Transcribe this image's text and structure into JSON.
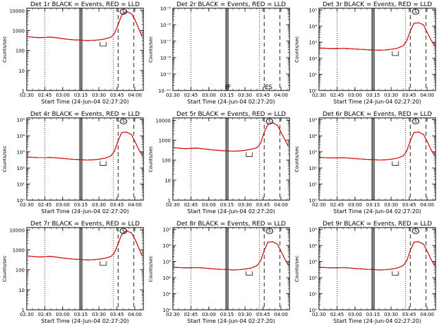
{
  "figure": {
    "time_axis_label": "Start Time (24-Jun-04 02:27:20)",
    "count_axis_label": "Counts/sec",
    "x_tick_labels": [
      "02:30",
      "02:45",
      "03:00",
      "03:15",
      "03:30",
      "03:45",
      "04:00"
    ],
    "colors": {
      "events": "#000000",
      "lld": "#ff0000",
      "background": "#ffffff"
    }
  },
  "chart_data": [
    {
      "type": "line",
      "title": "Det 1r BLACK = Events, RED = LLD",
      "xlabel": "Start Time (24-Jun-04 02:27:20)",
      "ylabel": "Counts/sec",
      "log_y": true,
      "xlim": [
        "02:30",
        "04:07"
      ],
      "ylim": [
        1,
        13000
      ],
      "y_tick_labels": [
        "1",
        "10",
        "100",
        "1000",
        "10000"
      ],
      "x_tick_labels": [
        "02:30",
        "02:45",
        "03:00",
        "03:15",
        "03:30",
        "03:45",
        "04:00"
      ],
      "annotations": [
        "Ⓢ"
      ],
      "markers": {
        "dotted_lines": [
          "02:45",
          "03:42"
        ],
        "solid_lines": [
          "03:14",
          "03:15",
          "03:16"
        ],
        "dashed_lines": [
          "03:46",
          "03:59"
        ]
      },
      "x": [
        "02:30",
        "02:35",
        "02:40",
        "02:45",
        "02:50",
        "02:55",
        "03:00",
        "03:05",
        "03:10",
        "03:15",
        "03:20",
        "03:25",
        "03:30",
        "03:35",
        "03:40",
        "03:43",
        "03:46",
        "03:49",
        "03:53",
        "03:57",
        "04:00",
        "04:03",
        "04:06"
      ],
      "series": [
        {
          "values": [
            500,
            460,
            440,
            450,
            470,
            430,
            390,
            360,
            340,
            330,
            310,
            320,
            340,
            380,
            460,
            700,
            2000,
            6000,
            9000,
            7000,
            3500,
            1300,
            500
          ]
        },
        {
          "values": [
            500,
            460,
            440,
            450,
            470,
            430,
            390,
            360,
            340,
            330,
            310,
            320,
            340,
            380,
            460,
            700,
            2000,
            6000,
            9000,
            7000,
            3500,
            1300,
            500
          ]
        }
      ]
    },
    {
      "type": "line",
      "title": "Det 2r BLACK = Events, RED = LLD",
      "xlabel": "Start Time (24-Jun-04 02:27:20)",
      "ylabel": "Counts/sec",
      "log_y": true,
      "xlim": [
        "02:30",
        "04:07"
      ],
      "ylim": [
        1e-10,
        1e-05
      ],
      "y_tick_labels": [
        "10⁻¹⁰",
        "10⁻⁹",
        "10⁻⁸",
        "10⁻⁷",
        "10⁻⁶",
        "10⁻⁵"
      ],
      "x_tick_labels": [
        "02:30",
        "02:45",
        "03:00",
        "03:15",
        "03:30",
        "03:45",
        "04:00"
      ],
      "annotations": [
        "F",
        "F",
        "E",
        "S"
      ],
      "markers": {
        "dotted_lines": [
          "02:45",
          "03:42"
        ],
        "solid_lines": [
          "03:14",
          "03:15",
          "03:16"
        ],
        "dashed_lines": [
          "03:46",
          "03:59"
        ]
      },
      "x": [],
      "series": []
    },
    {
      "type": "line",
      "title": "Det 3r BLACK = Events, RED = LLD",
      "xlabel": "Start Time (24-Jun-04 02:27:20)",
      "ylabel": "Counts/sec",
      "log_y": true,
      "xlim": [
        "02:30",
        "04:07"
      ],
      "ylim": [
        1,
        130000
      ],
      "y_tick_labels": [
        "10⁰",
        "10¹",
        "10²",
        "10³",
        "10⁴",
        "10⁵"
      ],
      "x_tick_labels": [
        "02:30",
        "02:45",
        "03:00",
        "03:15",
        "03:30",
        "03:45",
        "04:00"
      ],
      "annotations": [
        "Ⓢ"
      ],
      "markers": {
        "dotted_lines": [
          "02:45",
          "03:42"
        ],
        "solid_lines": [
          "03:14",
          "03:15",
          "03:16"
        ],
        "dashed_lines": [
          "03:46",
          "03:59"
        ]
      },
      "x": [
        "02:30",
        "02:35",
        "02:40",
        "02:45",
        "02:50",
        "02:55",
        "03:00",
        "03:05",
        "03:10",
        "03:15",
        "03:20",
        "03:25",
        "03:30",
        "03:35",
        "03:40",
        "03:43",
        "03:46",
        "03:49",
        "03:53",
        "03:57",
        "04:00",
        "04:03",
        "04:06"
      ],
      "series": [
        {
          "values": [
            430,
            420,
            410,
            410,
            420,
            400,
            380,
            360,
            340,
            330,
            320,
            330,
            360,
            420,
            600,
            1200,
            5000,
            15000,
            16000,
            12000,
            4000,
            1500,
            600
          ]
        },
        {
          "values": [
            430,
            420,
            410,
            410,
            420,
            400,
            380,
            360,
            340,
            330,
            320,
            330,
            360,
            420,
            600,
            1200,
            5000,
            15000,
            16000,
            12000,
            4000,
            1500,
            600
          ]
        }
      ]
    },
    {
      "type": "line",
      "title": "Det 4r BLACK = Events, RED = LLD",
      "xlabel": "Start Time (24-Jun-04 02:27:20)",
      "ylabel": "Counts/sec",
      "log_y": true,
      "xlim": [
        "02:30",
        "04:07"
      ],
      "ylim": [
        1,
        130000
      ],
      "y_tick_labels": [
        "10⁰",
        "10¹",
        "10²",
        "10³",
        "10⁴",
        "10⁵"
      ],
      "x_tick_labels": [
        "02:30",
        "02:45",
        "03:00",
        "03:15",
        "03:30",
        "03:45",
        "04:00"
      ],
      "annotations": [
        "Ⓢ"
      ],
      "markers": {
        "dotted_lines": [
          "02:45",
          "03:42"
        ],
        "solid_lines": [
          "03:14",
          "03:15",
          "03:16"
        ],
        "dashed_lines": [
          "03:46",
          "03:59"
        ]
      },
      "x": [
        "02:30",
        "02:35",
        "02:40",
        "02:45",
        "02:50",
        "02:55",
        "03:00",
        "03:05",
        "03:10",
        "03:15",
        "03:20",
        "03:25",
        "03:30",
        "03:35",
        "03:40",
        "03:43",
        "03:46",
        "03:49",
        "03:53",
        "03:57",
        "04:00",
        "04:03",
        "04:06"
      ],
      "series": [
        {
          "values": [
            480,
            460,
            440,
            440,
            450,
            420,
            390,
            360,
            340,
            330,
            310,
            320,
            350,
            400,
            560,
            1100,
            5000,
            16000,
            17000,
            12000,
            4500,
            1500,
            600
          ]
        },
        {
          "values": [
            480,
            460,
            440,
            440,
            450,
            420,
            390,
            360,
            340,
            330,
            310,
            320,
            350,
            400,
            560,
            1100,
            5000,
            16000,
            17000,
            12000,
            4500,
            1500,
            600
          ]
        }
      ]
    },
    {
      "type": "line",
      "title": "Det 5r BLACK = Events, RED = LLD",
      "xlabel": "Start Time (24-Jun-04 02:27:20)",
      "ylabel": "Counts/sec",
      "log_y": true,
      "xlim": [
        "02:30",
        "04:07"
      ],
      "ylim": [
        1,
        13000
      ],
      "y_tick_labels": [
        "1",
        "10",
        "100",
        "1000",
        "10000"
      ],
      "x_tick_labels": [
        "02:30",
        "02:45",
        "03:00",
        "03:15",
        "03:30",
        "03:45",
        "04:00"
      ],
      "annotations": [
        "Ⓢ"
      ],
      "markers": {
        "dotted_lines": [
          "02:45",
          "03:42"
        ],
        "solid_lines": [
          "03:14",
          "03:15",
          "03:16"
        ],
        "dashed_lines": [
          "03:46",
          "03:59"
        ]
      },
      "x": [
        "02:30",
        "02:35",
        "02:40",
        "02:45",
        "02:50",
        "02:55",
        "03:00",
        "03:05",
        "03:10",
        "03:15",
        "03:20",
        "03:25",
        "03:30",
        "03:35",
        "03:40",
        "03:43",
        "03:46",
        "03:49",
        "03:53",
        "03:57",
        "04:00",
        "04:03",
        "04:06"
      ],
      "series": [
        {
          "values": [
            420,
            400,
            380,
            390,
            400,
            370,
            340,
            320,
            300,
            290,
            280,
            290,
            310,
            350,
            420,
            700,
            2500,
            6000,
            7500,
            5500,
            2500,
            1100,
            500
          ]
        },
        {
          "values": [
            420,
            400,
            380,
            390,
            400,
            370,
            340,
            320,
            300,
            290,
            280,
            290,
            310,
            350,
            420,
            700,
            2500,
            6000,
            7500,
            5500,
            2500,
            1100,
            500
          ]
        }
      ]
    },
    {
      "type": "line",
      "title": "Det 6r BLACK = Events, RED = LLD",
      "xlabel": "Start Time (24-Jun-04 02:27:20)",
      "ylabel": "Counts/sec",
      "log_y": true,
      "xlim": [
        "02:30",
        "04:07"
      ],
      "ylim": [
        1,
        130000
      ],
      "y_tick_labels": [
        "10⁰",
        "10¹",
        "10²",
        "10³",
        "10⁴",
        "10⁵"
      ],
      "x_tick_labels": [
        "02:30",
        "02:45",
        "03:00",
        "03:15",
        "03:30",
        "03:45",
        "04:00"
      ],
      "annotations": [
        "Ⓢ"
      ],
      "markers": {
        "dotted_lines": [
          "02:45",
          "03:42"
        ],
        "solid_lines": [
          "03:14",
          "03:15",
          "03:16"
        ],
        "dashed_lines": [
          "03:46",
          "03:59"
        ]
      },
      "x": [
        "02:30",
        "02:35",
        "02:40",
        "02:45",
        "02:50",
        "02:55",
        "03:00",
        "03:05",
        "03:10",
        "03:15",
        "03:20",
        "03:25",
        "03:30",
        "03:35",
        "03:40",
        "03:43",
        "03:46",
        "03:49",
        "03:53",
        "03:57",
        "04:00",
        "04:03",
        "04:06"
      ],
      "series": [
        {
          "values": [
            460,
            440,
            420,
            420,
            430,
            410,
            380,
            360,
            340,
            330,
            310,
            320,
            350,
            400,
            560,
            1100,
            5000,
            16000,
            17000,
            12000,
            4500,
            1500,
            600
          ]
        },
        {
          "values": [
            460,
            440,
            420,
            420,
            430,
            410,
            380,
            360,
            340,
            330,
            310,
            320,
            350,
            400,
            560,
            1100,
            5000,
            16000,
            17000,
            12000,
            4500,
            1500,
            600
          ]
        }
      ]
    },
    {
      "type": "line",
      "title": "Det 7r BLACK = Events, RED = LLD",
      "xlabel": "Start Time (24-Jun-04 02:27:20)",
      "ylabel": "Counts/sec",
      "log_y": true,
      "xlim": [
        "02:30",
        "04:07"
      ],
      "ylim": [
        1,
        13000
      ],
      "y_tick_labels": [
        "1",
        "10",
        "100",
        "1000",
        "10000"
      ],
      "x_tick_labels": [
        "02:30",
        "02:45",
        "03:00",
        "03:15",
        "03:30",
        "03:45",
        "04:00"
      ],
      "annotations": [
        "Ⓢ"
      ],
      "markers": {
        "dotted_lines": [
          "02:45",
          "03:42"
        ],
        "solid_lines": [
          "03:14",
          "03:15",
          "03:16"
        ],
        "dashed_lines": [
          "03:46",
          "03:59"
        ]
      },
      "x": [
        "02:30",
        "02:35",
        "02:40",
        "02:45",
        "02:50",
        "02:55",
        "03:00",
        "03:05",
        "03:10",
        "03:15",
        "03:20",
        "03:25",
        "03:30",
        "03:35",
        "03:40",
        "03:43",
        "03:46",
        "03:49",
        "03:53",
        "03:57",
        "04:00",
        "04:03",
        "04:06"
      ],
      "series": [
        {
          "values": [
            500,
            460,
            440,
            450,
            470,
            430,
            390,
            360,
            340,
            330,
            310,
            320,
            340,
            380,
            460,
            700,
            2000,
            6000,
            9000,
            7000,
            3500,
            1300,
            500
          ]
        },
        {
          "values": [
            500,
            460,
            440,
            450,
            470,
            430,
            390,
            360,
            340,
            330,
            310,
            320,
            340,
            380,
            460,
            700,
            2000,
            6000,
            9000,
            7000,
            3500,
            1300,
            500
          ]
        }
      ]
    },
    {
      "type": "line",
      "title": "Det 8r BLACK = Events, RED = LLD",
      "xlabel": "Start Time (24-Jun-04 02:27:20)",
      "ylabel": "Counts/sec",
      "log_y": true,
      "xlim": [
        "02:30",
        "04:07"
      ],
      "ylim": [
        1,
        130000
      ],
      "y_tick_labels": [
        "10⁰",
        "10¹",
        "10²",
        "10³",
        "10⁴",
        "10⁵"
      ],
      "x_tick_labels": [
        "02:30",
        "02:45",
        "03:00",
        "03:15",
        "03:30",
        "03:45",
        "04:00"
      ],
      "annotations": [
        "Ⓢ"
      ],
      "markers": {
        "dotted_lines": [
          "02:45",
          "03:42"
        ],
        "solid_lines": [
          "03:14",
          "03:15",
          "03:16"
        ],
        "dashed_lines": [
          "03:46",
          "03:59"
        ]
      },
      "x": [
        "02:30",
        "02:35",
        "02:40",
        "02:45",
        "02:50",
        "02:55",
        "03:00",
        "03:05",
        "03:10",
        "03:15",
        "03:20",
        "03:25",
        "03:30",
        "03:35",
        "03:40",
        "03:43",
        "03:46",
        "03:49",
        "03:53",
        "03:57",
        "04:00",
        "04:03",
        "04:06"
      ],
      "series": [
        {
          "values": [
            440,
            420,
            410,
            410,
            420,
            400,
            370,
            350,
            330,
            320,
            300,
            310,
            340,
            390,
            560,
            1100,
            5000,
            16000,
            17000,
            12000,
            4500,
            1500,
            600
          ]
        },
        {
          "values": [
            440,
            420,
            410,
            410,
            420,
            400,
            370,
            350,
            330,
            320,
            300,
            310,
            340,
            390,
            560,
            1100,
            5000,
            16000,
            17000,
            12000,
            4500,
            1500,
            600
          ]
        }
      ]
    },
    {
      "type": "line",
      "title": "Det 9r BLACK = Events, RED = LLD",
      "xlabel": "Start Time (24-Jun-04 02:27:20)",
      "ylabel": "Counts/sec",
      "log_y": true,
      "xlim": [
        "02:30",
        "04:07"
      ],
      "ylim": [
        1,
        130000
      ],
      "y_tick_labels": [
        "10⁰",
        "10¹",
        "10²",
        "10³",
        "10⁴",
        "10⁵"
      ],
      "x_tick_labels": [
        "02:30",
        "02:45",
        "03:00",
        "03:15",
        "03:30",
        "03:45",
        "04:00"
      ],
      "annotations": [
        "Ⓢ"
      ],
      "markers": {
        "dotted_lines": [
          "02:45",
          "03:42"
        ],
        "solid_lines": [
          "03:14",
          "03:15",
          "03:16"
        ],
        "dashed_lines": [
          "03:46",
          "03:59"
        ]
      },
      "x": [
        "02:30",
        "02:35",
        "02:40",
        "02:45",
        "02:50",
        "02:55",
        "03:00",
        "03:05",
        "03:10",
        "03:15",
        "03:20",
        "03:25",
        "03:30",
        "03:35",
        "03:40",
        "03:43",
        "03:46",
        "03:49",
        "03:53",
        "03:57",
        "04:00",
        "04:03",
        "04:06"
      ],
      "series": [
        {
          "values": [
            430,
            420,
            410,
            410,
            420,
            400,
            370,
            350,
            330,
            320,
            300,
            310,
            340,
            390,
            560,
            1100,
            5000,
            16000,
            17000,
            12000,
            4500,
            1500,
            600
          ]
        },
        {
          "values": [
            430,
            420,
            410,
            410,
            420,
            400,
            370,
            350,
            330,
            320,
            300,
            310,
            340,
            390,
            560,
            1100,
            5000,
            16000,
            17000,
            12000,
            4500,
            1500,
            600
          ]
        }
      ]
    }
  ]
}
